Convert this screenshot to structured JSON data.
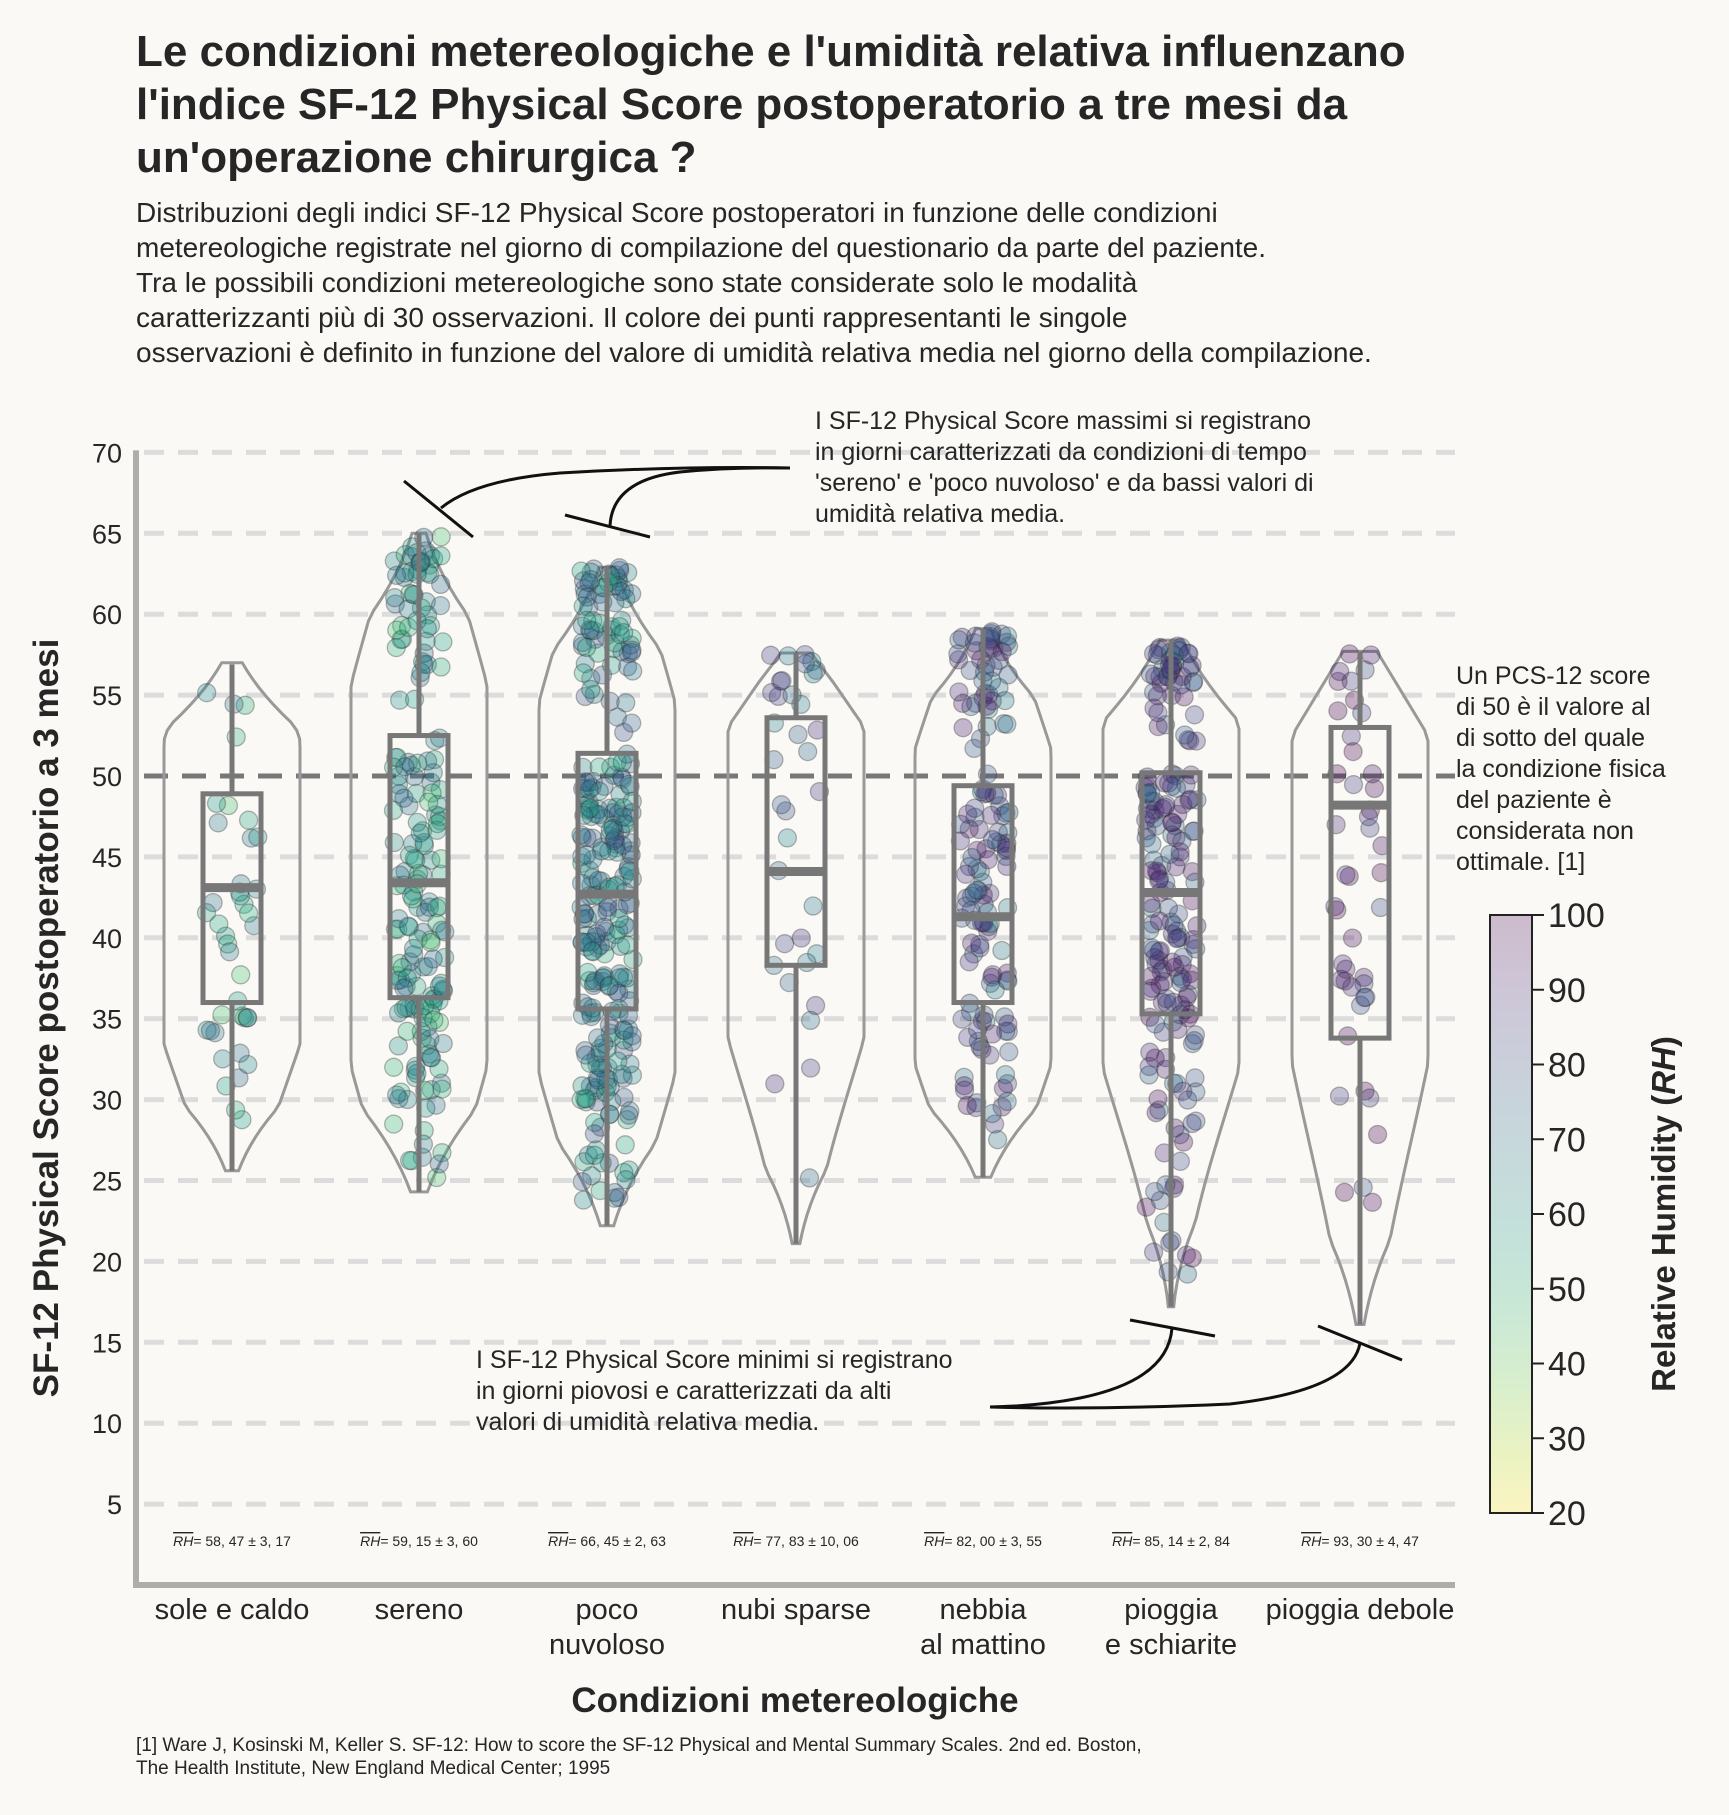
{
  "chart_data": {
    "type": "violin",
    "title_lines": [
      "Le condizioni metereologiche e l'umidità relativa influenzano",
      "l'indice SF-12 Physical Score postoperatorio a tre mesi da",
      "un'operazione chirurgica ?"
    ],
    "subtitle_lines": [
      "Distribuzioni degli indici SF-12 Physical Score postoperatori in funzione delle condizioni",
      "metereologiche registrate nel giorno di compilazione del questionario da parte del paziente.",
      "Tra le possibili condizioni metereologiche sono state considerate solo le modalità",
      "caratterizzanti più di 30 osservazioni. Il colore dei punti rappresentanti le singole",
      "osservazioni è definito in funzione del valore di umidità relativa media nel giorno della compilazione."
    ],
    "xlabel": "Condizioni metereologiche",
    "ylabel": "SF-12 Physical Score postoperatorio a 3 mesi",
    "ylim": [
      0,
      70
    ],
    "yticks": [
      5,
      10,
      15,
      20,
      25,
      30,
      35,
      40,
      45,
      50,
      55,
      60,
      65,
      70
    ],
    "grid": "horizontal dashed",
    "reference_line": 50,
    "categories": [
      {
        "label": [
          "sole e caldo"
        ],
        "rh_label": "= 58, 47 ± 3, 17",
        "rh": 58.47,
        "min": 25.6,
        "q1": 36.0,
        "median": 43.1,
        "q3": 48.9,
        "max": 56.9,
        "violin_top": 57.0,
        "violin_bottom": 25.6,
        "n": 40
      },
      {
        "label": [
          "sereno"
        ],
        "rh_label": "= 59, 15 ± 3, 60",
        "rh": 59.15,
        "min": 24.3,
        "q1": 36.3,
        "median": 43.4,
        "q3": 52.5,
        "max": 65.0,
        "violin_top": 65.0,
        "violin_bottom": 24.3,
        "n": 200
      },
      {
        "label": [
          "poco",
          "nuvoloso"
        ],
        "rh_label": "= 66, 45 ± 2, 63",
        "rh": 66.45,
        "min": 22.2,
        "q1": 35.6,
        "median": 42.7,
        "q3": 51.4,
        "max": 62.9,
        "violin_top": 62.9,
        "violin_bottom": 22.2,
        "n": 300
      },
      {
        "label": [
          "nubi sparse"
        ],
        "rh_label": "= 77, 83 ± 10, 06",
        "rh": 77.83,
        "min": 21.1,
        "q1": 38.3,
        "median": 44.1,
        "q3": 53.6,
        "max": 57.6,
        "violin_top": 57.6,
        "violin_bottom": 21.1,
        "n": 35
      },
      {
        "label": [
          "nebbia",
          "al mattino"
        ],
        "rh_label": "= 82, 00 ± 3, 55",
        "rh": 82.0,
        "min": 25.2,
        "q1": 36.0,
        "median": 41.3,
        "q3": 49.4,
        "max": 59.1,
        "violin_top": 59.1,
        "violin_bottom": 25.2,
        "n": 150
      },
      {
        "label": [
          "pioggia",
          "e schiarite"
        ],
        "rh_label": "= 85, 14 ± 2, 84",
        "rh": 85.14,
        "min": 17.2,
        "q1": 35.3,
        "median": 42.8,
        "q3": 50.2,
        "max": 58.4,
        "violin_top": 58.4,
        "violin_bottom": 17.2,
        "n": 200
      },
      {
        "label": [
          "pioggia debole"
        ],
        "rh_label": "= 93, 30 ± 4, 47",
        "rh": 93.3,
        "min": 16.1,
        "q1": 33.8,
        "median": 48.2,
        "q3": 53.0,
        "max": 57.7,
        "violin_top": 57.7,
        "violin_bottom": 16.1,
        "n": 45
      }
    ],
    "rh_symbol": "RH",
    "colorbar": {
      "label": "Relative Humidity (",
      "label_symbol": "RH",
      "label_end": ")",
      "min": 20,
      "max": 100,
      "ticks": [
        20,
        30,
        40,
        50,
        60,
        70,
        80,
        90,
        100
      ],
      "colormap": "viridis_r"
    },
    "annotations": {
      "top": [
        "I SF-12 Physical Score massimi si registrano",
        "in giorni caratterizzati da condizioni di tempo",
        "'sereno' e 'poco nuvoloso' e da bassi valori di",
        "umidità relativa media."
      ],
      "bottom": [
        "I SF-12 Physical Score minimi si registrano",
        "in giorni piovosi e caratterizzati da alti",
        "valori di umidità relativa media."
      ],
      "right": [
        "Un PCS-12 score",
        "di 50 è il valore al",
        "di sotto del quale",
        "la condizione fisica",
        " del paziente è",
        "considerata non",
        "ottimale. [1]"
      ]
    },
    "footnote_lines": [
      "[1] Ware J, Kosinski M, Keller S. SF-12: How to score the SF-12 Physical and Mental Summary Scales. 2nd ed. Boston,",
      "The Health Institute, New England Medical Center; 1995"
    ],
    "colors": {
      "background": "#faf9f5",
      "grid": "#dcdcdc",
      "axis": "#b0aca8",
      "violin": "#999999",
      "box": "#777777",
      "refline": "#777777",
      "text": "#262626"
    }
  }
}
